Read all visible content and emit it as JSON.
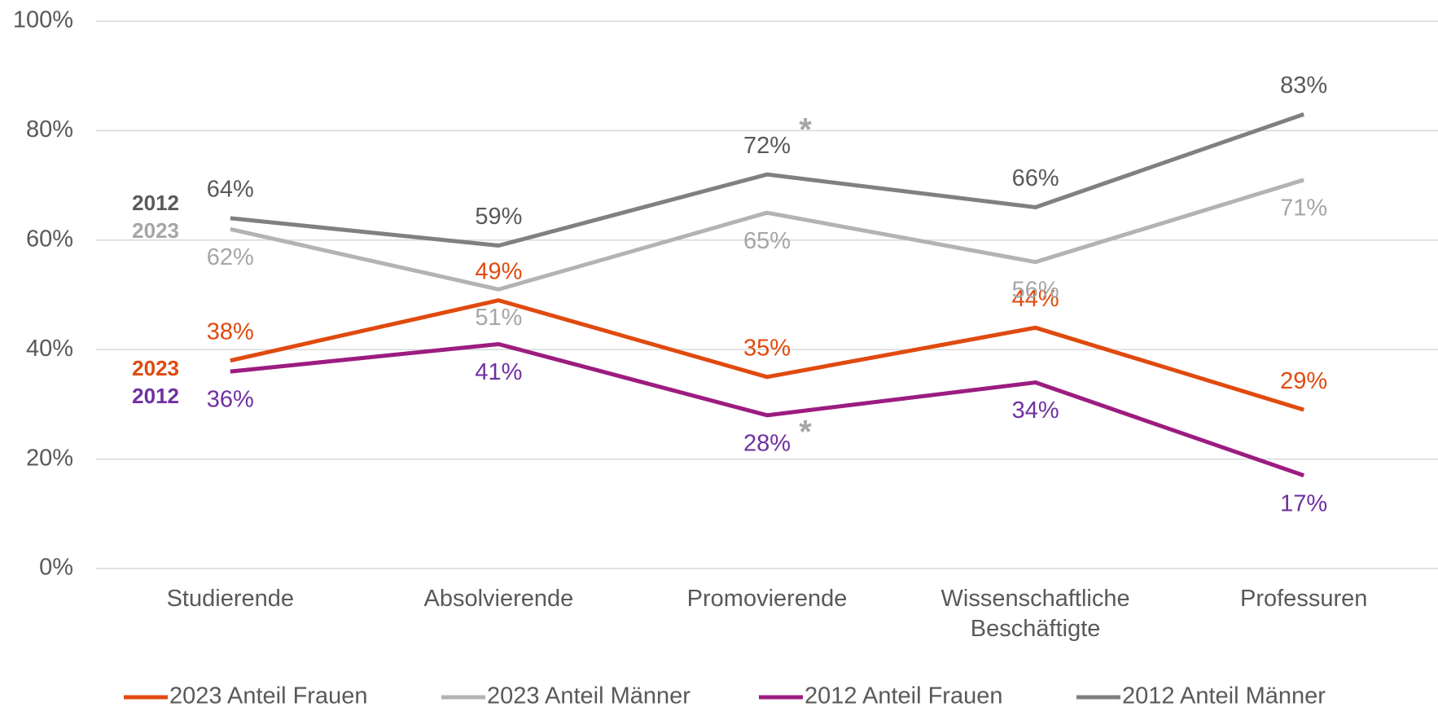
{
  "chart_data": {
    "type": "line",
    "categories": [
      "Studierende",
      "Absolvierende",
      "Promovierende",
      "Wissenschaftliche Beschäftigte",
      "Professuren"
    ],
    "series": [
      {
        "name": "2023 Anteil Frauen",
        "color": "#e04a0f",
        "label_color": "#e04a0f",
        "values": [
          38,
          49,
          35,
          44,
          29
        ],
        "value_labels": [
          "38%",
          "49%",
          "35%",
          "44%",
          "29%"
        ]
      },
      {
        "name": "2023 Anteil Männer",
        "color": "#b3b3b3",
        "label_color": "#a6a6a6",
        "values": [
          62,
          51,
          65,
          56,
          71
        ],
        "value_labels": [
          "62%",
          "51%",
          "65%",
          "56%",
          "71%"
        ]
      },
      {
        "name": "2012 Anteil Frauen",
        "color": "#9c1c80",
        "label_color": "#7030a0",
        "values": [
          36,
          41,
          28,
          34,
          17
        ],
        "value_labels": [
          "36%",
          "41%",
          "28%",
          "34%",
          "17%"
        ]
      },
      {
        "name": "2012 Anteil Männer",
        "color": "#808080",
        "label_color": "#595959",
        "values": [
          64,
          59,
          72,
          66,
          83
        ],
        "value_labels": [
          "64%",
          "59%",
          "72%",
          "66%",
          "83%"
        ]
      }
    ],
    "ylim": [
      0,
      100
    ],
    "yticks": [
      {
        "value": 0,
        "label": "0%"
      },
      {
        "value": 20,
        "label": "20%"
      },
      {
        "value": 40,
        "label": "40%"
      },
      {
        "value": 60,
        "label": "60%"
      },
      {
        "value": 80,
        "label": "80%"
      },
      {
        "value": 100,
        "label": "100%"
      }
    ],
    "grid": true,
    "legend": "bottom",
    "annotations": [
      {
        "text": "2012",
        "color": "#595959"
      },
      {
        "text": "2023",
        "color": "#a6a6a6"
      },
      {
        "text": "2023",
        "color": "#e04a0f"
      },
      {
        "text": "2012",
        "color": "#7030a0"
      },
      {
        "text": "*",
        "color": "#a6a6a6"
      },
      {
        "text": "*",
        "color": "#a6a6a6"
      }
    ]
  }
}
